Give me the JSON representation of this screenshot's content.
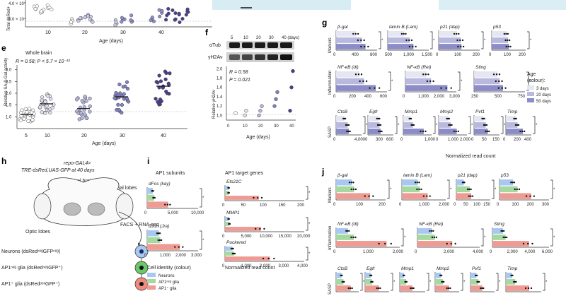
{
  "panels": {
    "d_top": {
      "ylabel": "Total dsRed+",
      "yticks": [
        "4.0 × 10⁵",
        "8.0 × 10⁴"
      ],
      "xlabel": "Age (days)",
      "xticks": [
        "10",
        "20",
        "30",
        "40"
      ]
    },
    "e": {
      "label": "e",
      "title": "Whole brain",
      "stat1": "R = 0.58; P < 5.7 × 10⁻¹²",
      "ylabel": "Relative SA-β-Gal activity",
      "yticks": [
        "1.0",
        "1.5",
        "2.0",
        "2.5",
        "3.0"
      ],
      "xlabel": "Age (days)",
      "xticks": [
        "5",
        "10",
        "20",
        "30",
        "40"
      ]
    },
    "f": {
      "label": "f",
      "ages": [
        "5",
        "10",
        "20",
        "30",
        "40 (days)"
      ],
      "band1": "αTub",
      "band2": "γH2Av",
      "r": "R = 0.58",
      "p": "P = 0.021",
      "ylabel": "Relative γH2Av",
      "yticks": [
        "1.0",
        "1.2",
        "1.4",
        "1.6",
        "1.8",
        "2.0"
      ],
      "xlabel": "Age (days)",
      "xticks": [
        "0",
        "10",
        "20",
        "30",
        "40"
      ]
    },
    "g": {
      "label": "g",
      "groups": [
        "Markers",
        "Inflammation",
        "SASP"
      ],
      "xlabel": "Normalized read count",
      "rows": [
        [
          {
            "gene": "β-gal",
            "ticks": [
              "0",
              "400",
              "800"
            ],
            "vals": [
              0.55,
              0.7,
              0.8
            ]
          },
          {
            "gene": "lamin B (Lam)",
            "ticks": [
              "500",
              "1,000",
              "1,500"
            ],
            "vals": [
              0.45,
              0.6,
              0.7
            ]
          },
          {
            "gene": "p21 (dap)",
            "ticks": [
              "0",
              "100",
              "200"
            ],
            "vals": [
              0.5,
              0.6,
              0.62
            ]
          },
          {
            "gene": "p53",
            "ticks": [
              "0",
              "100",
              "200"
            ],
            "vals": [
              0.5,
              0.55,
              0.58
            ]
          }
        ],
        [
          {
            "gene": "NF-κB (dl)",
            "ticks": [
              "0",
              "200",
              "400",
              "600"
            ],
            "vals": [
              0.5,
              0.6,
              0.85
            ]
          },
          {
            "gene": "NF-κB (Rel)",
            "ticks": [
              "0",
              "1,000",
              "2,000",
              "3,000"
            ],
            "vals": [
              0.45,
              0.55,
              0.9
            ]
          },
          {
            "gene": "Sting",
            "ticks": [
              "250",
              "500",
              "750"
            ],
            "vals": [
              0.5,
              0.55,
              0.62
            ]
          }
        ],
        [
          {
            "gene": "CtsB",
            "ticks": [
              "0",
              "4,000"
            ],
            "vals": [
              0.4,
              0.55,
              0.6
            ]
          },
          {
            "gene": "Egfr",
            "ticks": [
              "0",
              "300",
              "600"
            ],
            "vals": [
              0.5,
              0.55,
              0.6
            ]
          },
          {
            "gene": "Mmp1",
            "ticks": [
              "0",
              "1,000"
            ],
            "vals": [
              0.3,
              0.4,
              0.85
            ]
          },
          {
            "gene": "Mmp2",
            "ticks": [
              "0",
              "1,000",
              "2,000"
            ],
            "vals": [
              0.4,
              0.5,
              0.75
            ]
          },
          {
            "gene": "Pvf1",
            "ticks": [
              "0",
              "50",
              "150"
            ],
            "vals": [
              0.45,
              0.55,
              0.65
            ]
          },
          {
            "gene": "Timp",
            "ticks": [
              "0",
              "200",
              "400"
            ],
            "vals": [
              0.45,
              0.55,
              0.8
            ]
          }
        ]
      ],
      "legend": {
        "title": "Age",
        "subtitle": "(colour):",
        "items": [
          "3 days",
          "20 days",
          "50 days"
        ]
      },
      "colors": [
        "#e6e6f3",
        "#b9b9df",
        "#8c8cc8"
      ]
    },
    "h": {
      "label": "h",
      "title1": "repo-GAL4>",
      "title2": "TRE-dsRed,UAS-GFP at 40 days",
      "central": "Central brain",
      "antennal": "antennal lobes",
      "optic": "Optic lobes",
      "facs": "FACS + RNA-seq",
      "cells": [
        "Neurons (dsRedⁿᵉᵍGFPⁿᵉᵍ)",
        "AP1ⁿᵉᵍ glia (dsRedⁿᵉᵍGFP⁺)",
        "AP1⁺ glia (dsRedᵖᵒˢGFP⁺)"
      ]
    },
    "i": {
      "label": "i",
      "left_title": "AP1 subunits",
      "right_title": "AP1 target genes",
      "left": [
        {
          "gene": "dFos (kay)",
          "ticks": [
            "0",
            "5,000",
            "10,000"
          ],
          "vals": [
            0.12,
            0.15,
            0.45
          ]
        },
        {
          "gene": "dJun (Jra)",
          "ticks": [
            "0",
            "1,000",
            "2,000",
            "3,000"
          ],
          "vals": [
            0.25,
            0.28,
            0.7
          ]
        }
      ],
      "right": [
        {
          "gene": "Ets21C",
          "ticks": [
            "0",
            "50",
            "100",
            "150",
            "200"
          ],
          "vals": [
            0.05,
            0.05,
            0.45
          ]
        },
        {
          "gene": "MMP1",
          "ticks": [
            "0",
            "5,000",
            "10,000",
            "15,000",
            "20,000"
          ],
          "vals": [
            0.05,
            0.06,
            0.48
          ]
        },
        {
          "gene": "Puckered",
          "ticks": [
            "0",
            "1,000",
            "2,000",
            "3,000",
            "4,000"
          ],
          "vals": [
            0.1,
            0.12,
            0.6
          ]
        }
      ],
      "legend": {
        "title": "Cell identity (colour)",
        "items": [
          "Neurons",
          "AP1ⁿᵉᵍ glia",
          "AP1⁺ glia"
        ]
      },
      "xlabel": "Normalized read count",
      "colors": [
        "#a9c8ef",
        "#a6d9a2",
        "#ef9a92"
      ]
    },
    "j": {
      "label": "j",
      "groups": [
        "Markers",
        "Inflammation",
        "SASP"
      ],
      "rows": [
        [
          {
            "gene": "β-gal",
            "ticks": [
              "0",
              "100",
              "200"
            ],
            "vals": [
              0.35,
              0.4,
              0.75
            ]
          },
          {
            "gene": "lamin B (Lam)",
            "ticks": [
              "0",
              "1,000",
              "2,000"
            ],
            "vals": [
              0.4,
              0.45,
              0.65
            ]
          },
          {
            "gene": "p21 (dap)",
            "ticks": [
              "0",
              "50",
              "100",
              "150"
            ],
            "vals": [
              0.25,
              0.45,
              0.5
            ]
          },
          {
            "gene": "p53",
            "ticks": [
              "0",
              "100",
              "200",
              "300"
            ],
            "vals": [
              0.3,
              0.4,
              0.7
            ]
          }
        ],
        [
          {
            "gene": "NF-κB (dl)",
            "ticks": [
              "0",
              "1,000",
              "2,000"
            ],
            "vals": [
              0.2,
              0.3,
              0.85
            ]
          },
          {
            "gene": "NF-κB (Rel)",
            "ticks": [
              "0",
              "2,000",
              "4,000"
            ],
            "vals": [
              0.25,
              0.3,
              0.6
            ]
          },
          {
            "gene": "Sting",
            "ticks": [
              "0",
              "2,000",
              "4,000",
              "6,000"
            ],
            "vals": [
              0.2,
              0.25,
              0.7
            ]
          }
        ],
        [
          {
            "gene": "CtsB",
            "ticks": [],
            "vals": [
              0.3,
              0.4,
              0.8
            ]
          },
          {
            "gene": "Egfr",
            "ticks": [],
            "vals": [
              0.3,
              0.35,
              0.7
            ]
          },
          {
            "gene": "Mmp1",
            "ticks": [],
            "vals": [
              0.2,
              0.3,
              0.6
            ]
          },
          {
            "gene": "Mmp2",
            "ticks": [],
            "vals": [
              0.3,
              0.4,
              0.7
            ]
          },
          {
            "gene": "Pvf1",
            "ticks": [],
            "vals": [
              0.3,
              0.4,
              0.6
            ]
          },
          {
            "gene": "Timp",
            "ticks": [],
            "vals": [
              0.2,
              0.3,
              0.75
            ]
          }
        ]
      ],
      "colors": [
        "#a9c8ef",
        "#a6d9a2",
        "#ef9a92"
      ]
    }
  },
  "chart_data": [
    {
      "type": "scatter",
      "title": "Whole brain",
      "xlabel": "Age (days)",
      "ylabel": "Relative SA-β-Gal activity",
      "categories": [
        "5",
        "10",
        "20",
        "30",
        "40"
      ],
      "medians": [
        1.1,
        1.55,
        1.35,
        1.85,
        2.3
      ],
      "ylim": [
        0.5,
        3.2
      ],
      "annotation": "R = 0.58; P < 5.7 × 10⁻¹²"
    },
    {
      "type": "scatter",
      "title": "γH2Av",
      "xlabel": "Age (days)",
      "ylabel": "Relative γH2Av",
      "x": [
        5,
        10,
        10,
        20,
        20,
        20,
        30,
        30,
        30,
        40,
        40,
        40
      ],
      "y": [
        1.05,
        1.0,
        1.1,
        1.0,
        1.1,
        1.2,
        1.2,
        1.35,
        1.5,
        1.1,
        1.6,
        1.95
      ],
      "xlim": [
        0,
        40
      ],
      "ylim": [
        0.9,
        2.05
      ],
      "annotation": "R = 0.58, P = 0.021"
    }
  ]
}
